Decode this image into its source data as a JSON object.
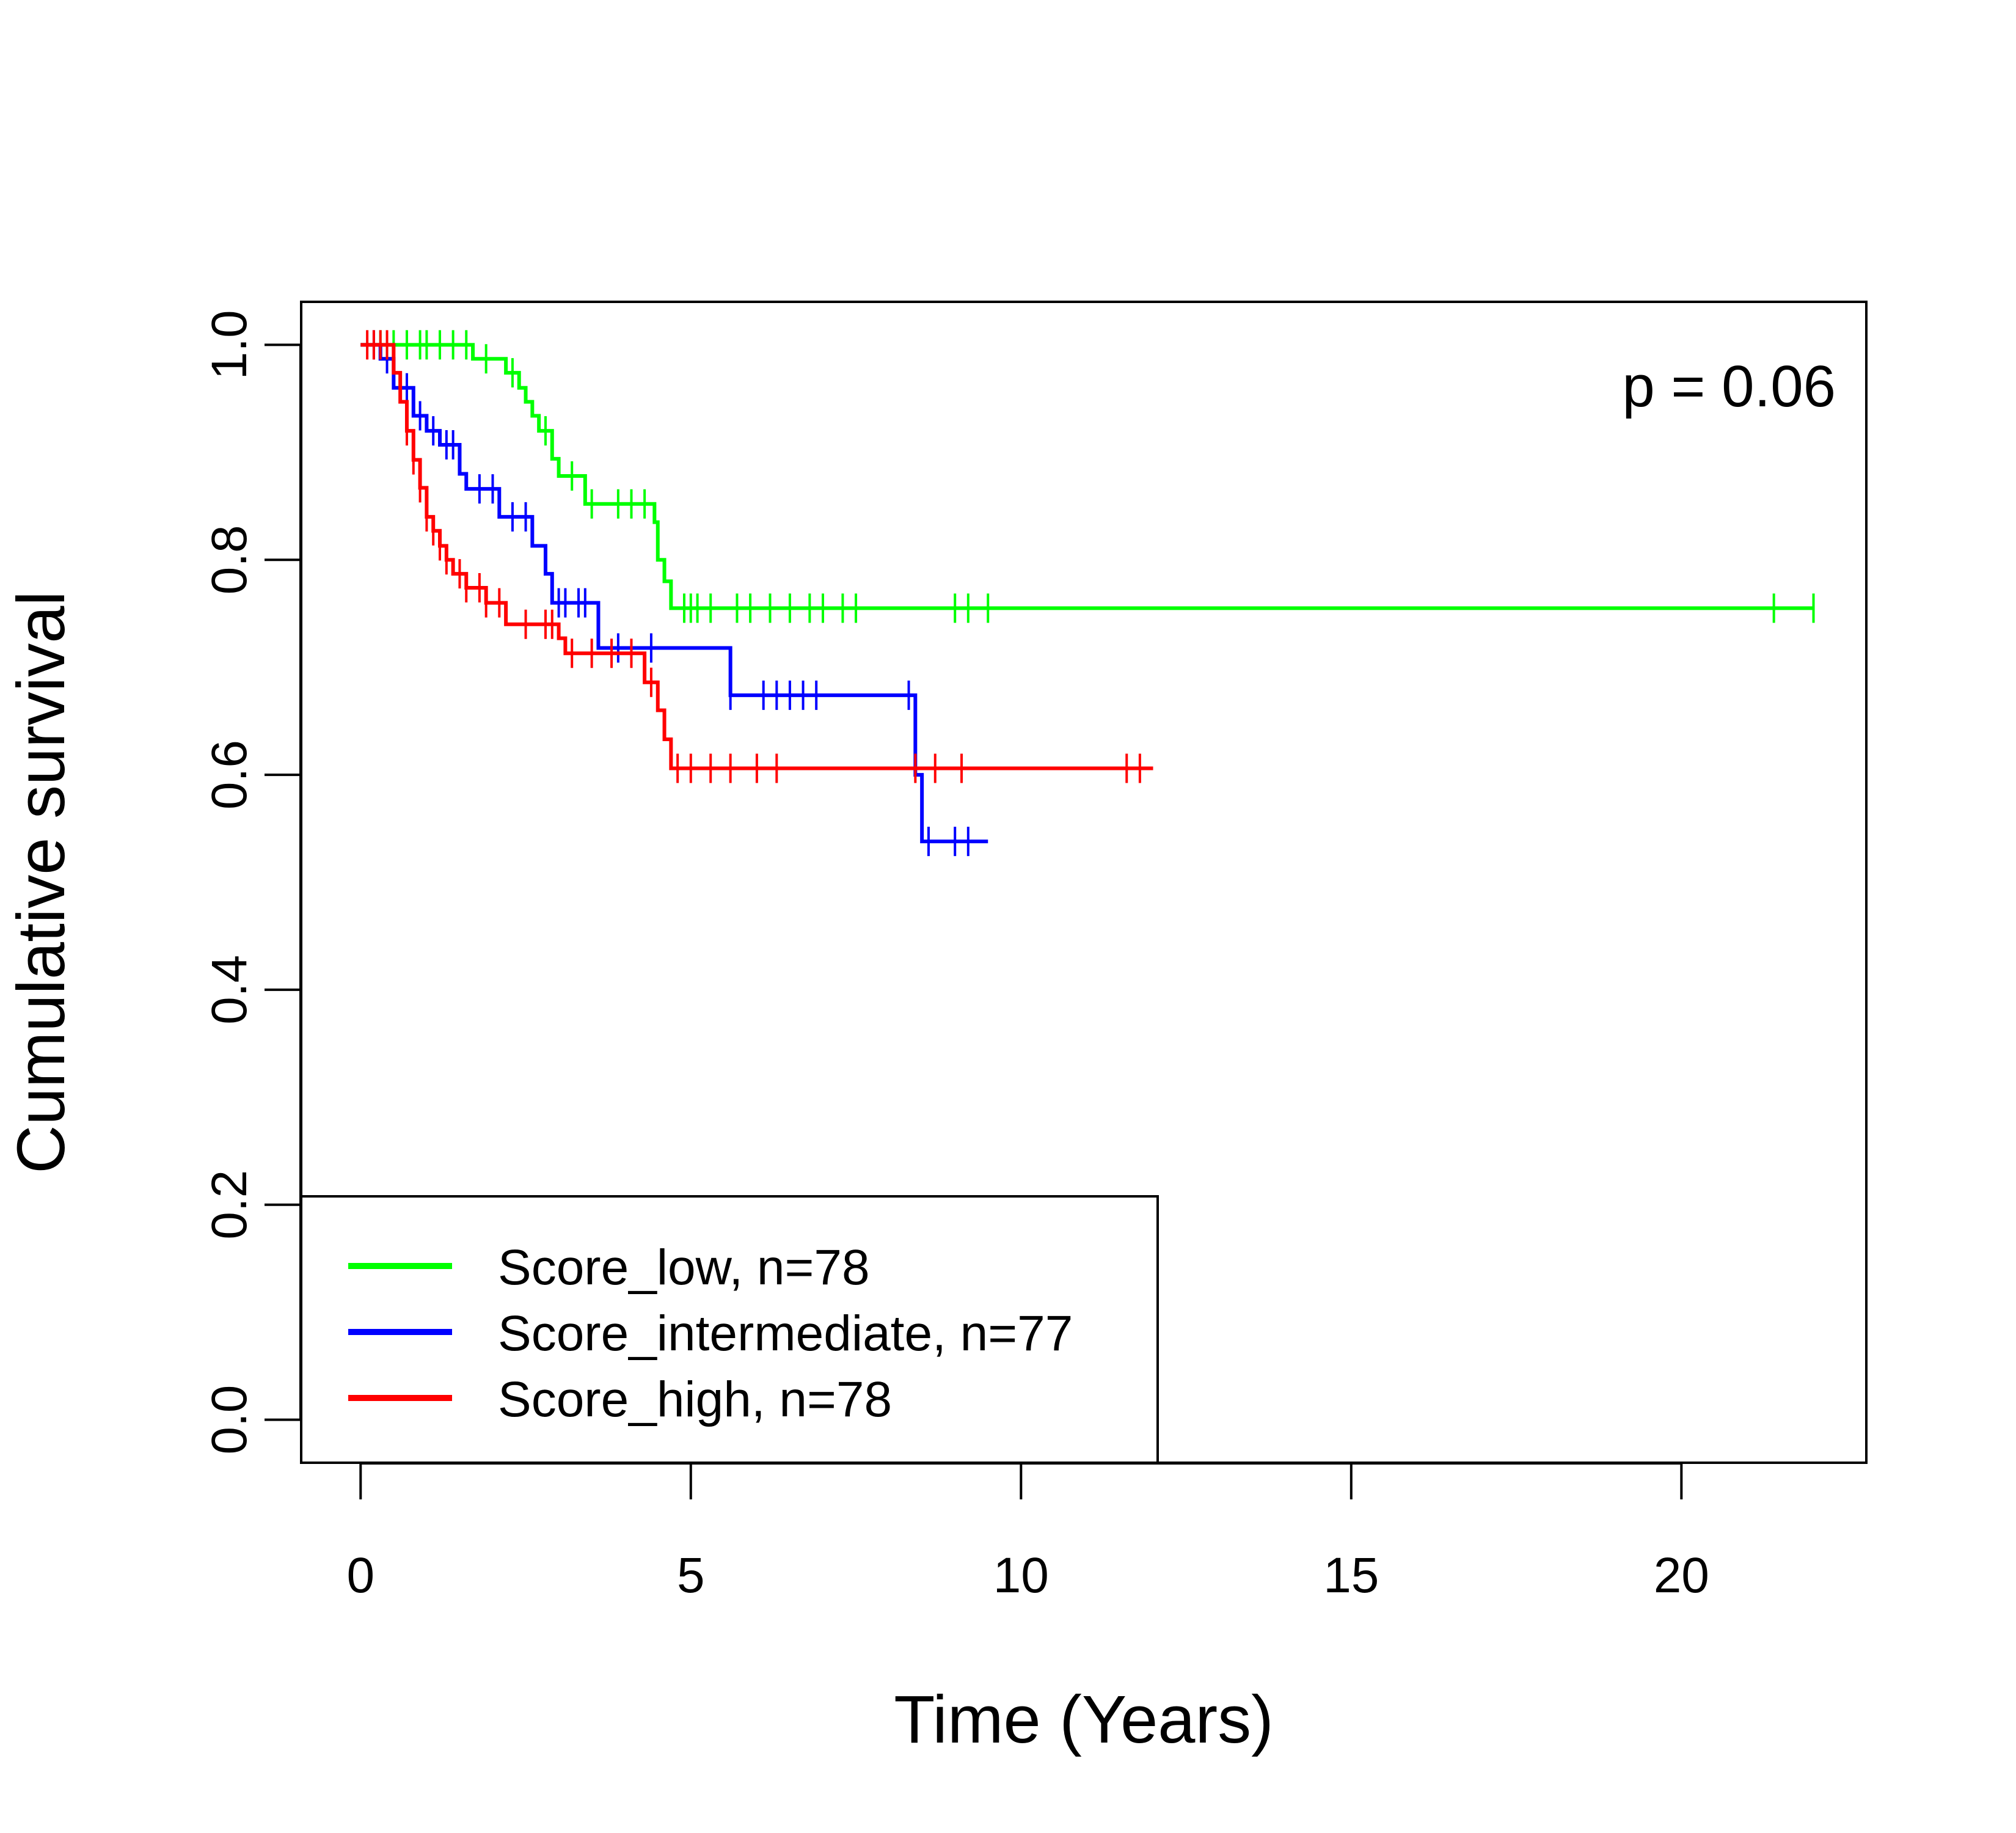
{
  "chart_data": {
    "type": "line",
    "subtype": "kaplan-meier step",
    "title": "",
    "xlabel": "Time (Years)",
    "ylabel": "Cumulative survival",
    "xlim": [
      -0.9,
      22.8
    ],
    "ylim": [
      -0.04,
      1.04
    ],
    "xticks": [
      0,
      5,
      10,
      15,
      20
    ],
    "xtick_labels": [
      "0",
      "5",
      "10",
      "15",
      "20"
    ],
    "yticks": [
      0.0,
      0.2,
      0.4,
      0.6,
      0.8,
      1.0
    ],
    "ytick_labels": [
      "0.0",
      "0.2",
      "0.4",
      "0.6",
      "0.8",
      "1.0"
    ],
    "annotation": "p = 0.06",
    "legend_position": "bottom-left",
    "grid": false,
    "series": [
      {
        "name": "Score_low, n=78",
        "color": "#00ff00",
        "steps": [
          [
            0,
            1.0
          ],
          [
            1.7,
            0.987
          ],
          [
            2.2,
            0.974
          ],
          [
            2.4,
            0.96
          ],
          [
            2.5,
            0.947
          ],
          [
            2.6,
            0.934
          ],
          [
            2.7,
            0.92
          ],
          [
            2.9,
            0.894
          ],
          [
            3.0,
            0.878
          ],
          [
            3.4,
            0.852
          ],
          [
            4.45,
            0.835
          ],
          [
            4.5,
            0.8
          ],
          [
            4.6,
            0.78
          ],
          [
            4.7,
            0.755
          ],
          [
            22.0,
            0.755
          ]
        ],
        "censor_times": [
          0.3,
          0.5,
          0.7,
          0.9,
          1.0,
          1.2,
          1.4,
          1.6,
          1.9,
          2.3,
          2.8,
          3.2,
          3.5,
          3.9,
          4.1,
          4.3,
          4.9,
          5.0,
          5.1,
          5.3,
          5.7,
          5.9,
          6.2,
          6.5,
          6.8,
          7.0,
          7.3,
          7.5,
          9.0,
          9.2,
          9.5,
          21.4,
          22.0
        ]
      },
      {
        "name": "Score_intermediate, n=77",
        "color": "#0000ff",
        "steps": [
          [
            0,
            1.0
          ],
          [
            0.3,
            0.987
          ],
          [
            0.5,
            0.96
          ],
          [
            0.8,
            0.934
          ],
          [
            1.0,
            0.92
          ],
          [
            1.2,
            0.907
          ],
          [
            1.5,
            0.88
          ],
          [
            1.6,
            0.866
          ],
          [
            2.1,
            0.84
          ],
          [
            2.6,
            0.813
          ],
          [
            2.8,
            0.787
          ],
          [
            2.9,
            0.76
          ],
          [
            3.6,
            0.718
          ],
          [
            5.6,
            0.674
          ],
          [
            8.4,
            0.6
          ],
          [
            8.5,
            0.538
          ],
          [
            9.5,
            0.538
          ]
        ],
        "censor_times": [
          0.2,
          0.4,
          0.6,
          0.7,
          0.9,
          1.1,
          1.3,
          1.4,
          1.8,
          2.0,
          2.3,
          2.5,
          3.0,
          3.1,
          3.3,
          3.4,
          3.9,
          4.4,
          5.6,
          6.1,
          6.3,
          6.5,
          6.7,
          6.9,
          8.3,
          8.6,
          9.0,
          9.2
        ]
      },
      {
        "name": "Score_high, n=78",
        "color": "#ff0000",
        "steps": [
          [
            0,
            1.0
          ],
          [
            0.5,
            0.974
          ],
          [
            0.6,
            0.947
          ],
          [
            0.7,
            0.92
          ],
          [
            0.8,
            0.893
          ],
          [
            0.9,
            0.867
          ],
          [
            1.0,
            0.84
          ],
          [
            1.1,
            0.827
          ],
          [
            1.2,
            0.813
          ],
          [
            1.3,
            0.8
          ],
          [
            1.4,
            0.787
          ],
          [
            1.6,
            0.774
          ],
          [
            1.9,
            0.76
          ],
          [
            2.2,
            0.74
          ],
          [
            3.0,
            0.727
          ],
          [
            3.1,
            0.713
          ],
          [
            4.3,
            0.686
          ],
          [
            4.5,
            0.66
          ],
          [
            4.6,
            0.633
          ],
          [
            4.7,
            0.606
          ],
          [
            12.0,
            0.606
          ]
        ],
        "censor_times": [
          0.1,
          0.2,
          0.3,
          0.4,
          0.7,
          0.8,
          0.9,
          1.0,
          1.1,
          1.2,
          1.3,
          1.5,
          1.6,
          1.8,
          1.9,
          2.1,
          2.5,
          2.8,
          2.9,
          3.2,
          3.5,
          3.8,
          4.1,
          4.4,
          4.8,
          5.0,
          5.3,
          5.6,
          6.0,
          6.3,
          8.4,
          8.7,
          9.1,
          11.6,
          11.8
        ]
      }
    ]
  }
}
